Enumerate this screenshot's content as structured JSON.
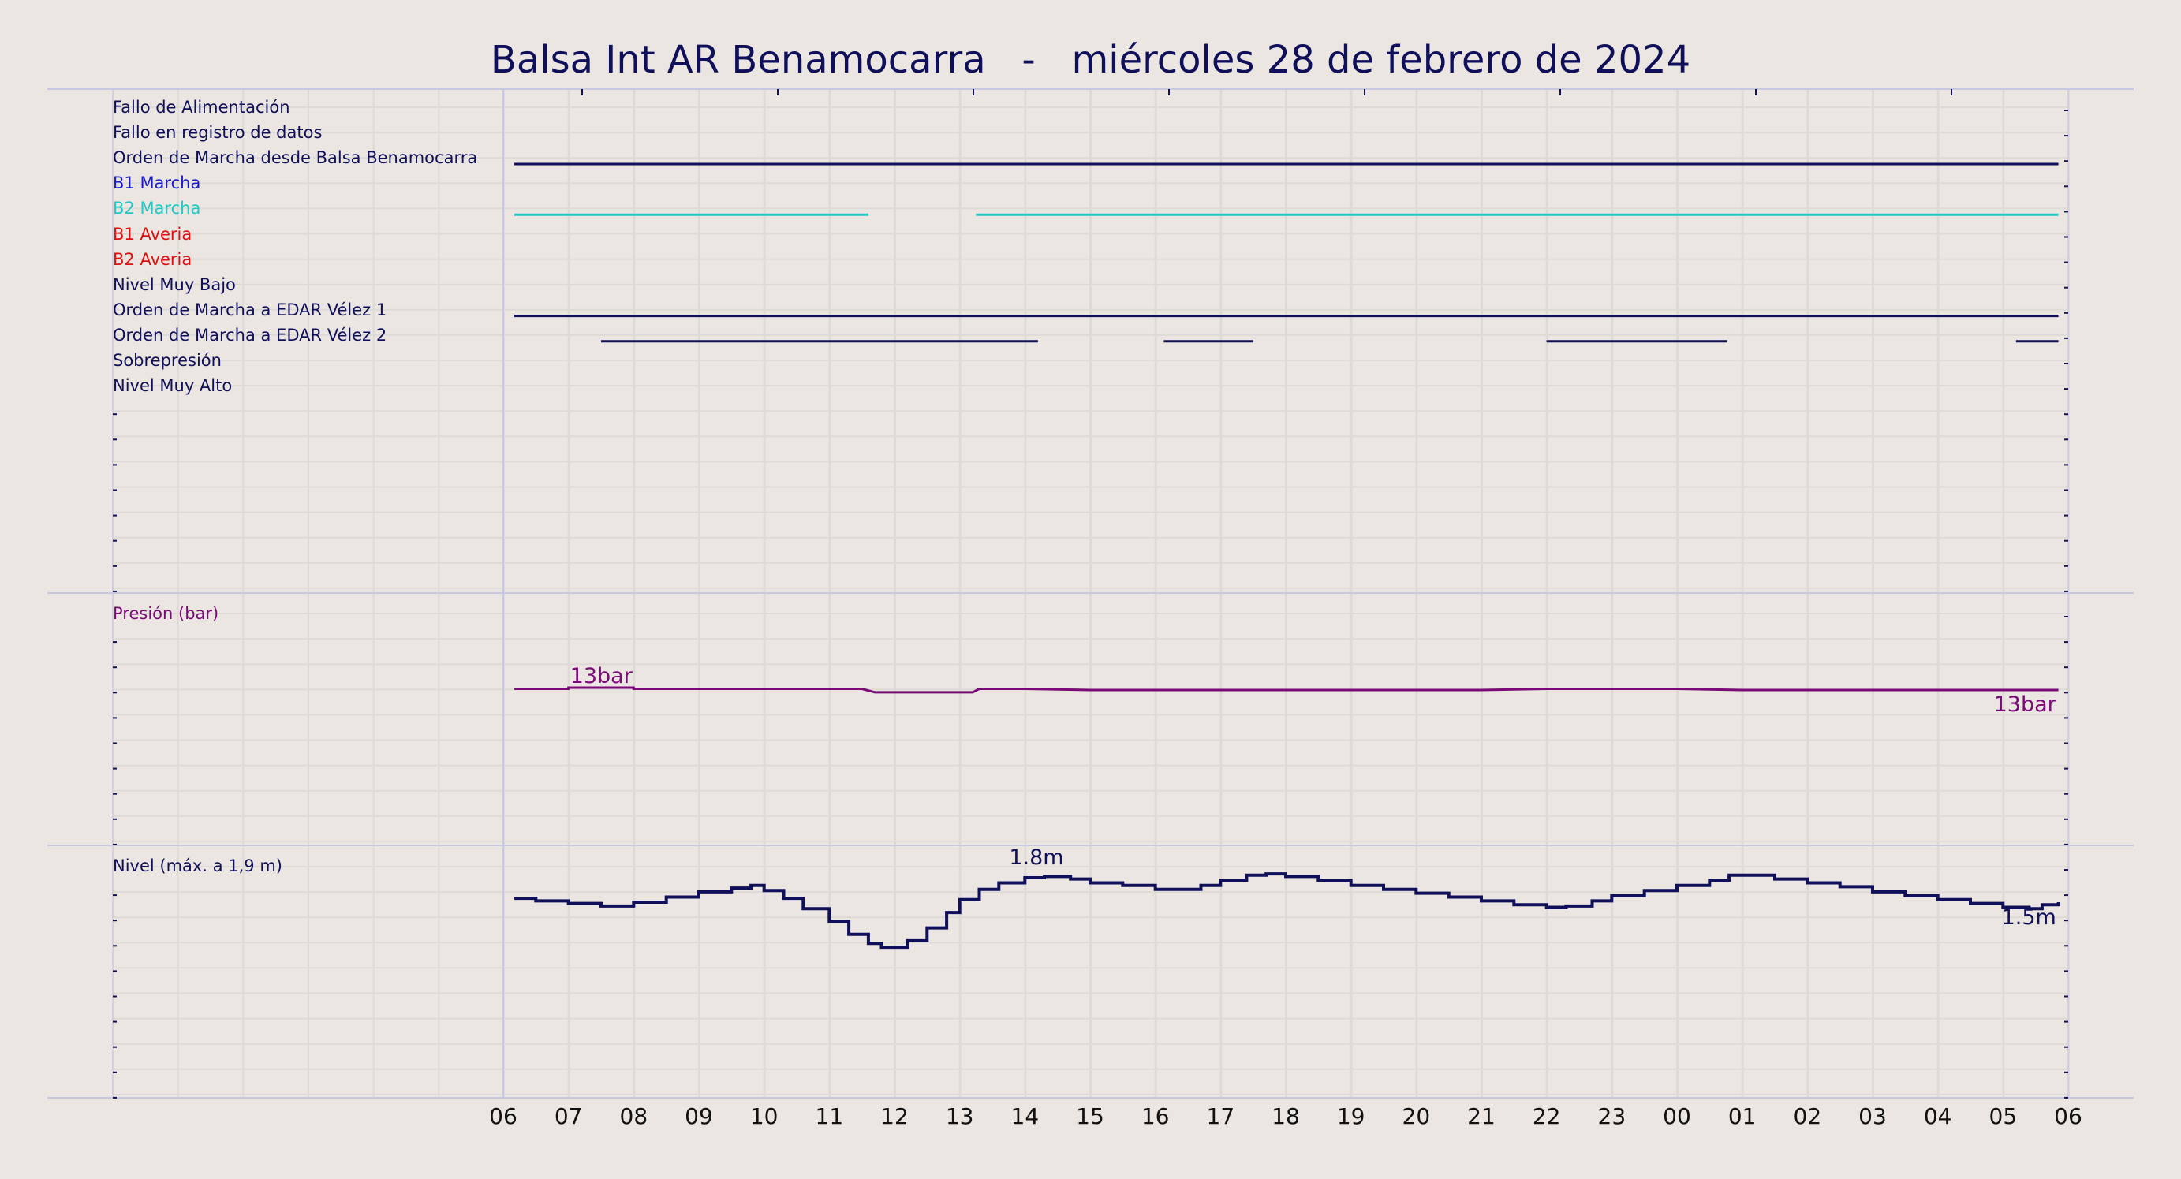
{
  "title": "Balsa Int AR Benamocarra   -   miércoles 28 de febrero de 2024",
  "colors": {
    "background": "#ebe6e1",
    "navy": "#10105a",
    "blue": "#1a1ad0",
    "cyan": "#20c8c8",
    "red": "#e01010",
    "purple": "#7a0a78"
  },
  "chart_data": [
    {
      "type": "line",
      "panel": "digital-signals",
      "x_ticks": [
        "06",
        "07",
        "08",
        "09",
        "10",
        "11",
        "12",
        "13",
        "14",
        "15",
        "16",
        "17",
        "18",
        "19",
        "20",
        "21",
        "22",
        "23",
        "00",
        "01",
        "02",
        "03",
        "04",
        "05",
        "06"
      ],
      "x_range_hours": [
        6,
        30
      ],
      "signals": [
        {
          "label": "Fallo de Alimentación",
          "color": "#10105a",
          "on_intervals": []
        },
        {
          "label": "Fallo en registro de datos",
          "color": "#10105a",
          "on_intervals": []
        },
        {
          "label": "Orden de Marcha desde Balsa Benamocarra",
          "color": "#10105a",
          "on_intervals": [
            [
              6.17,
              29.85
            ]
          ]
        },
        {
          "label": "B1 Marcha",
          "color": "#1a1ad0",
          "on_intervals": []
        },
        {
          "label": "B2 Marcha",
          "color": "#20c8c8",
          "on_intervals": [
            [
              6.17,
              11.6
            ],
            [
              13.25,
              29.85
            ]
          ]
        },
        {
          "label": "B1 Averia",
          "color": "#e01010",
          "on_intervals": []
        },
        {
          "label": "B2 Averia",
          "color": "#e01010",
          "on_intervals": []
        },
        {
          "label": "Nivel Muy Bajo",
          "color": "#10105a",
          "on_intervals": []
        },
        {
          "label": "Orden de Marcha a EDAR Vélez 1",
          "color": "#10105a",
          "on_intervals": [
            [
              6.17,
              29.85
            ]
          ]
        },
        {
          "label": "Orden de Marcha a EDAR Vélez 2",
          "color": "#10105a",
          "on_intervals": [
            [
              7.5,
              14.2
            ],
            [
              16.13,
              17.5
            ],
            [
              22.0,
              24.77
            ],
            [
              29.2,
              29.85
            ]
          ]
        },
        {
          "label": "Sobrepresión",
          "color": "#10105a",
          "on_intervals": []
        },
        {
          "label": "Nivel Muy Alto",
          "color": "#10105a",
          "on_intervals": []
        }
      ]
    },
    {
      "type": "line",
      "panel": "pressure",
      "label": "Presión (bar)",
      "unit": "bar",
      "color": "#7a0a78",
      "ylim": [
        0,
        20
      ],
      "x_hours": [
        6.17,
        7.0,
        7.0,
        8.0,
        8.0,
        9.0,
        10.0,
        11.0,
        11.5,
        11.7,
        12.0,
        13.0,
        13.2,
        13.3,
        14.0,
        15.0,
        16.0,
        17.0,
        18.0,
        19.0,
        20.0,
        21.0,
        22.0,
        23.0,
        24.0,
        25.0,
        26.0,
        27.0,
        28.0,
        29.0,
        29.85
      ],
      "y": [
        13,
        13,
        13.1,
        13.1,
        13,
        13,
        13,
        13,
        13,
        12.7,
        12.7,
        12.7,
        12.7,
        13,
        13,
        12.9,
        12.9,
        12.9,
        12.9,
        12.9,
        12.9,
        12.9,
        13,
        13,
        13,
        12.9,
        12.9,
        12.9,
        12.9,
        12.9,
        12.9
      ],
      "annotations": [
        "13bar",
        "13bar"
      ]
    },
    {
      "type": "line",
      "panel": "level",
      "label": "Nivel (máx. a 1,9 m)",
      "unit": "m",
      "color": "#10105a",
      "ylim": [
        0,
        1.9
      ],
      "x_hours": [
        6.17,
        6.5,
        7.0,
        7.5,
        8.0,
        8.5,
        9.0,
        9.5,
        9.8,
        10.0,
        10.3,
        10.6,
        11.0,
        11.3,
        11.6,
        11.8,
        12.0,
        12.2,
        12.5,
        12.8,
        13.0,
        13.3,
        13.6,
        14.0,
        14.3,
        14.7,
        15.0,
        15.5,
        16.0,
        16.3,
        16.7,
        17.0,
        17.4,
        17.7,
        18.0,
        18.5,
        19.0,
        19.5,
        20.0,
        20.5,
        21.0,
        21.5,
        22.0,
        22.3,
        22.7,
        23.0,
        23.5,
        24.0,
        24.5,
        24.8,
        25.0,
        25.5,
        26.0,
        26.5,
        27.0,
        27.5,
        28.0,
        28.5,
        29.0,
        29.4,
        29.6,
        29.85
      ],
      "y": [
        1.55,
        1.53,
        1.51,
        1.49,
        1.52,
        1.56,
        1.6,
        1.63,
        1.65,
        1.61,
        1.55,
        1.47,
        1.37,
        1.27,
        1.2,
        1.17,
        1.17,
        1.22,
        1.32,
        1.44,
        1.54,
        1.62,
        1.67,
        1.71,
        1.72,
        1.7,
        1.67,
        1.65,
        1.62,
        1.62,
        1.65,
        1.69,
        1.73,
        1.74,
        1.72,
        1.69,
        1.65,
        1.62,
        1.59,
        1.56,
        1.53,
        1.5,
        1.48,
        1.49,
        1.53,
        1.57,
        1.61,
        1.65,
        1.69,
        1.73,
        1.73,
        1.7,
        1.67,
        1.64,
        1.6,
        1.57,
        1.54,
        1.51,
        1.48,
        1.47,
        1.5,
        1.52
      ],
      "annotations": [
        "1.8m",
        "1.5m"
      ]
    }
  ]
}
